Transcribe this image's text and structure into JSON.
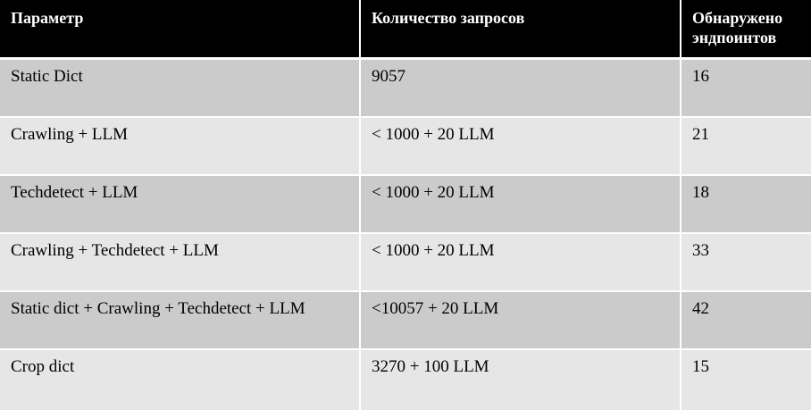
{
  "table": {
    "headers": [
      "Параметр",
      "Количество запросов",
      "Обнаружено эндпоинтов"
    ],
    "rows": [
      [
        "Static Dict",
        "9057",
        "16"
      ],
      [
        "Crawling + LLM",
        "< 1000 + 20 LLM",
        "21"
      ],
      [
        "Techdetect + LLM",
        "< 1000 + 20 LLM",
        "18"
      ],
      [
        "Crawling + Techdetect + LLM",
        "< 1000 + 20 LLM",
        "33"
      ],
      [
        "Static dict + Crawling + Techdetect + LLM",
        "<10057 + 20 LLM",
        "42"
      ],
      [
        "Crop dict",
        "3270 + 100 LLM",
        "15"
      ]
    ]
  },
  "colors": {
    "header_bg": "#000000",
    "row_odd": "#cbcbcb",
    "row_even": "#e6e6e6",
    "border": "#ffffff"
  }
}
